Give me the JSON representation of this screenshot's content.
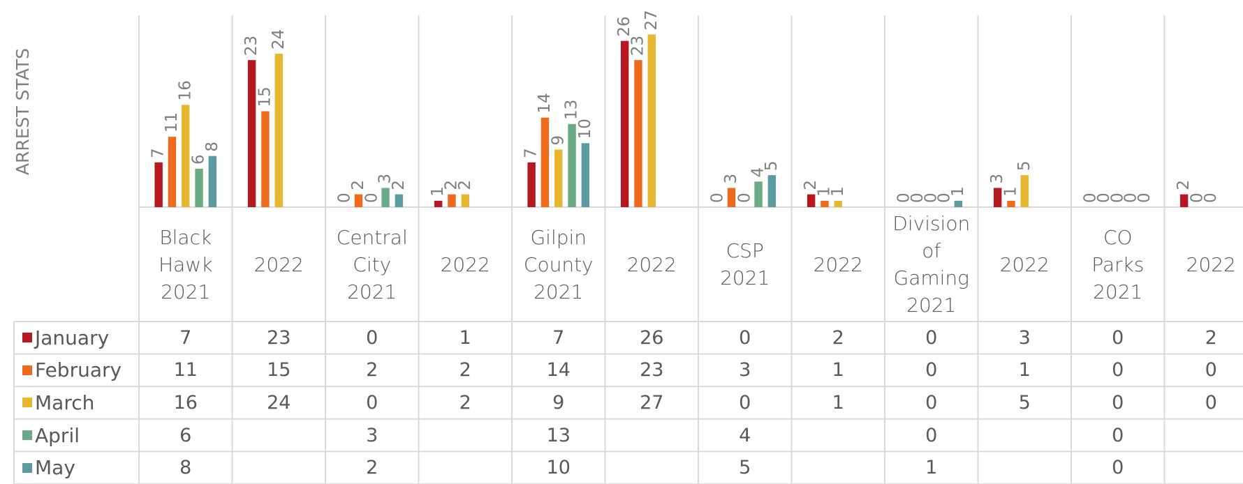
{
  "chart_data": {
    "type": "bar",
    "y_label": "ARREST STATS",
    "categories": [
      "Black Hawk 2021",
      "2022",
      "Central City 2021",
      "2022",
      "Gilpin County 2021",
      "2022",
      "CSP 2021",
      "2022",
      "Division of Gaming 2021",
      "2022",
      "CO Parks 2021",
      "2022"
    ],
    "series": [
      {
        "name": "January",
        "color": "#b5191f",
        "values": [
          7,
          23,
          0,
          1,
          7,
          26,
          0,
          2,
          0,
          3,
          0,
          2
        ]
      },
      {
        "name": "February",
        "color": "#ee6b1e",
        "values": [
          11,
          15,
          2,
          2,
          14,
          23,
          3,
          1,
          0,
          1,
          0,
          0
        ]
      },
      {
        "name": "March",
        "color": "#e8b730",
        "values": [
          16,
          24,
          0,
          2,
          9,
          27,
          0,
          1,
          0,
          5,
          0,
          0
        ]
      },
      {
        "name": "April",
        "color": "#6aaa84",
        "values": [
          6,
          null,
          3,
          null,
          13,
          null,
          4,
          null,
          0,
          null,
          0,
          null
        ]
      },
      {
        "name": "May",
        "color": "#5b9aa0",
        "values": [
          8,
          null,
          2,
          null,
          10,
          null,
          5,
          null,
          1,
          null,
          0,
          null
        ]
      }
    ],
    "ylim": [
      0,
      30
    ],
    "data_labels": true,
    "data_table": true
  }
}
